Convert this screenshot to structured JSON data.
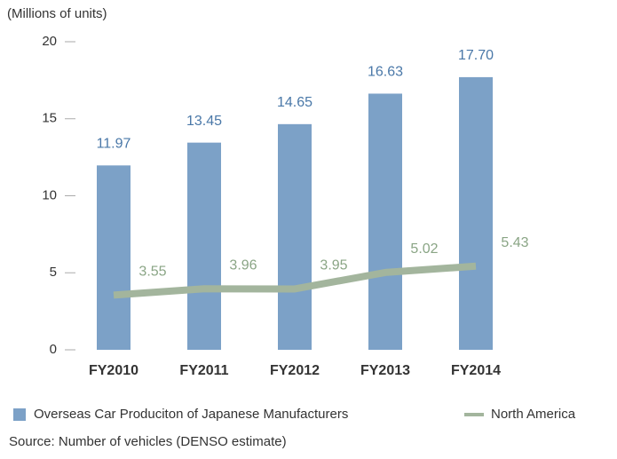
{
  "chart_data": {
    "type": "bar_line",
    "ylabel": "(Millions of units)",
    "categories": [
      "FY2010",
      "FY2011",
      "FY2012",
      "FY2013",
      "FY2014"
    ],
    "series": [
      {
        "name": "Overseas Car Produciton of Japanese Manufacturers",
        "color": "#7ca1c7",
        "type": "bar",
        "values": [
          11.97,
          13.45,
          14.65,
          16.63,
          17.7
        ],
        "value_labels": [
          "11.97",
          "13.45",
          "14.65",
          "16.63",
          "17.70"
        ]
      },
      {
        "name": "North America",
        "color": "#a3b59d",
        "type": "line",
        "values": [
          3.55,
          3.96,
          3.95,
          5.02,
          5.43
        ]
      }
    ],
    "ylim": [
      0,
      20
    ],
    "yticks": [
      0,
      5,
      10,
      15,
      20
    ],
    "source": "Source: Number of vehicles (DENSO estimate)"
  }
}
